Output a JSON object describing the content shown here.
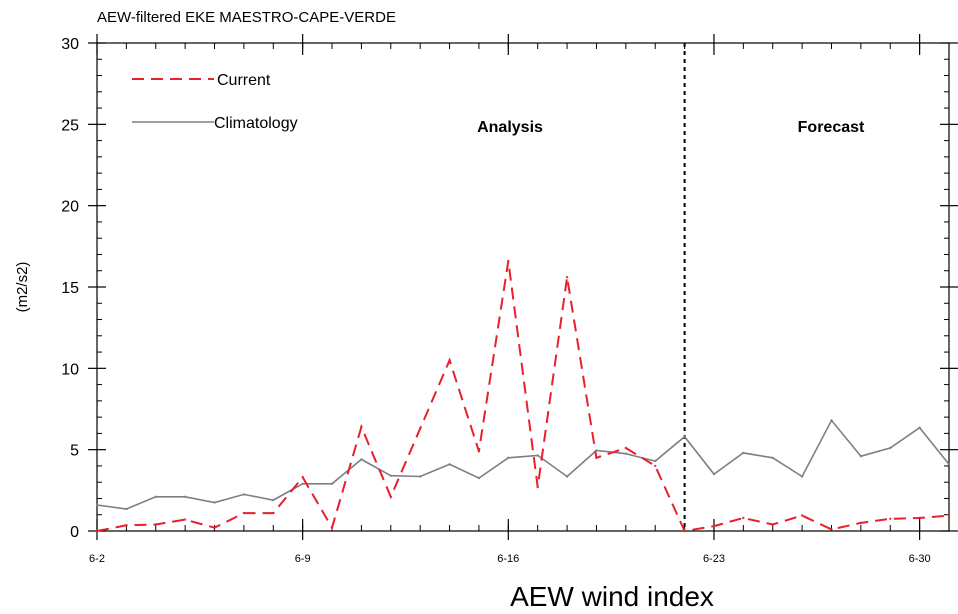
{
  "chart_data": {
    "type": "line",
    "title": "AEW-filtered EKE MAESTRO-CAPE-VERDE",
    "xlabel": "AEW wind index",
    "ylabel": "(m2/s2)",
    "x_tick_labels": [
      "6-2",
      "6-9",
      "6-16",
      "6-23",
      "6-30"
    ],
    "x_tick_days": [
      0,
      7,
      14,
      21,
      28
    ],
    "x_range_days": [
      0,
      29
    ],
    "y_range": [
      0,
      30
    ],
    "y_ticks": [
      0,
      5,
      10,
      15,
      20,
      25,
      30
    ],
    "y_tick_labels": [
      "0",
      "5",
      "10",
      "15",
      "20",
      "25",
      "30"
    ],
    "divider_day": 20,
    "annotations": {
      "analysis": "Analysis",
      "forecast": "Forecast"
    },
    "legend": {
      "placement": "top-left",
      "current_label": "Current",
      "climatology_label": "Climatology"
    },
    "series": [
      {
        "name": "Current",
        "color": "#e8202a",
        "style": "dashed",
        "x": [
          0,
          1,
          2,
          3,
          4,
          5,
          6,
          7,
          8,
          9,
          10,
          11,
          12,
          13,
          14,
          15,
          16,
          17,
          18,
          19,
          20,
          21,
          22,
          23,
          24,
          25,
          26,
          27,
          28,
          29
        ],
        "y": [
          0.0,
          0.35,
          0.4,
          0.7,
          0.2,
          1.1,
          1.1,
          3.3,
          0.2,
          6.4,
          2.1,
          6.3,
          10.5,
          4.9,
          16.6,
          2.7,
          15.6,
          4.5,
          5.1,
          4.0,
          0.0,
          0.3,
          0.8,
          0.4,
          0.95,
          0.1,
          0.5,
          0.75,
          0.8,
          0.95
        ]
      },
      {
        "name": "Climatology",
        "color": "#7f7f7f",
        "style": "solid",
        "x": [
          0,
          1,
          2,
          3,
          4,
          5,
          6,
          7,
          8,
          9,
          10,
          11,
          12,
          13,
          14,
          15,
          16,
          17,
          18,
          19,
          20,
          21,
          22,
          23,
          24,
          25,
          26,
          27,
          28,
          29
        ],
        "y": [
          1.6,
          1.35,
          2.1,
          2.1,
          1.75,
          2.25,
          1.9,
          2.9,
          2.9,
          4.4,
          3.4,
          3.35,
          4.1,
          3.25,
          4.5,
          4.65,
          3.35,
          4.95,
          4.75,
          4.3,
          5.8,
          3.5,
          4.8,
          4.5,
          3.35,
          6.8,
          4.6,
          5.1,
          6.35,
          4.1
        ]
      }
    ]
  }
}
